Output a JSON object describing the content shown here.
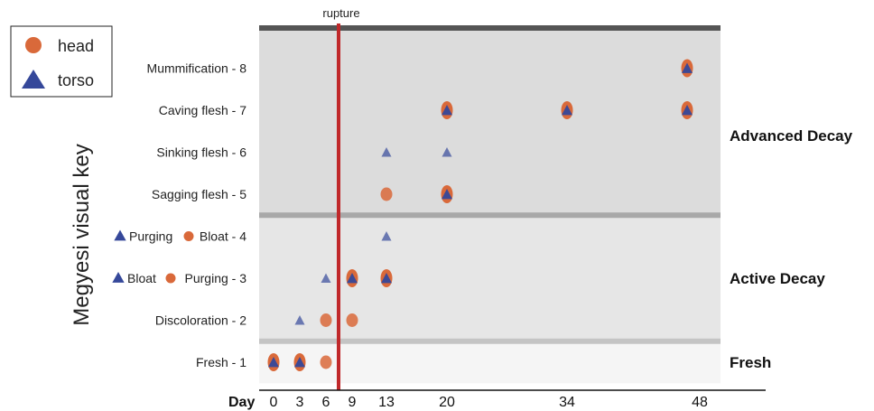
{
  "chart_data": {
    "type": "scatter",
    "title": "",
    "xlabel": "Day",
    "ylabel": "Megyesi visual key",
    "x_ticks": [
      0,
      3,
      6,
      9,
      13,
      20,
      34,
      48
    ],
    "y_categories": [
      "Fresh - 1",
      "Discoloration - 2",
      "Bloat  Purging - 3",
      "Purging  Bloat - 4",
      "Sagging flesh - 5",
      "Sinking flesh - 6",
      "Caving flesh - 7",
      "Mummification - 8"
    ],
    "y_label_parts": {
      "3": {
        "first": "Bloat",
        "second": "Purging - 3"
      },
      "4": {
        "first": "Purging",
        "second": "Bloat - 4"
      }
    },
    "stage_bands": [
      {
        "label": "Fresh",
        "from": 0.5,
        "to": 1.5,
        "color": "#f5f5f5"
      },
      {
        "label": "Active Decay",
        "from": 1.5,
        "to": 4.5,
        "color": "#e6e6e6"
      },
      {
        "label": "Advanced Decay",
        "from": 4.5,
        "to": 8.9,
        "color": "#dcdcdc"
      }
    ],
    "rupture": {
      "label": "rupture",
      "day": 7.5,
      "color": "#c0282a"
    },
    "legend": {
      "position": "top-left",
      "entries": [
        {
          "name": "head",
          "marker": "circle",
          "color": "#d9693a"
        },
        {
          "name": "torso",
          "marker": "triangle",
          "color": "#35489a"
        }
      ]
    },
    "series": [
      {
        "name": "head",
        "marker": "circle",
        "color": "#d9693a",
        "points": [
          {
            "day": 0,
            "score": 1
          },
          {
            "day": 3,
            "score": 1
          },
          {
            "day": 6,
            "score": 1
          },
          {
            "day": 6,
            "score": 2
          },
          {
            "day": 9,
            "score": 2
          },
          {
            "day": 9,
            "score": 3
          },
          {
            "day": 13,
            "score": 3
          },
          {
            "day": 13,
            "score": 5
          },
          {
            "day": 20,
            "score": 5
          },
          {
            "day": 20,
            "score": 7
          },
          {
            "day": 34,
            "score": 7
          },
          {
            "day": 47,
            "score": 7
          },
          {
            "day": 47,
            "score": 8
          }
        ]
      },
      {
        "name": "torso",
        "marker": "triangle",
        "color": "#35489a",
        "points": [
          {
            "day": 0,
            "score": 1
          },
          {
            "day": 3,
            "score": 1
          },
          {
            "day": 3,
            "score": 2
          },
          {
            "day": 6,
            "score": 3
          },
          {
            "day": 9,
            "score": 3
          },
          {
            "day": 13,
            "score": 3
          },
          {
            "day": 13,
            "score": 4
          },
          {
            "day": 20,
            "score": 5
          },
          {
            "day": 13,
            "score": 6
          },
          {
            "day": 20,
            "score": 6
          },
          {
            "day": 20,
            "score": 7
          },
          {
            "day": 34,
            "score": 7
          },
          {
            "day": 47,
            "score": 7
          },
          {
            "day": 47,
            "score": 8
          }
        ]
      }
    ]
  }
}
